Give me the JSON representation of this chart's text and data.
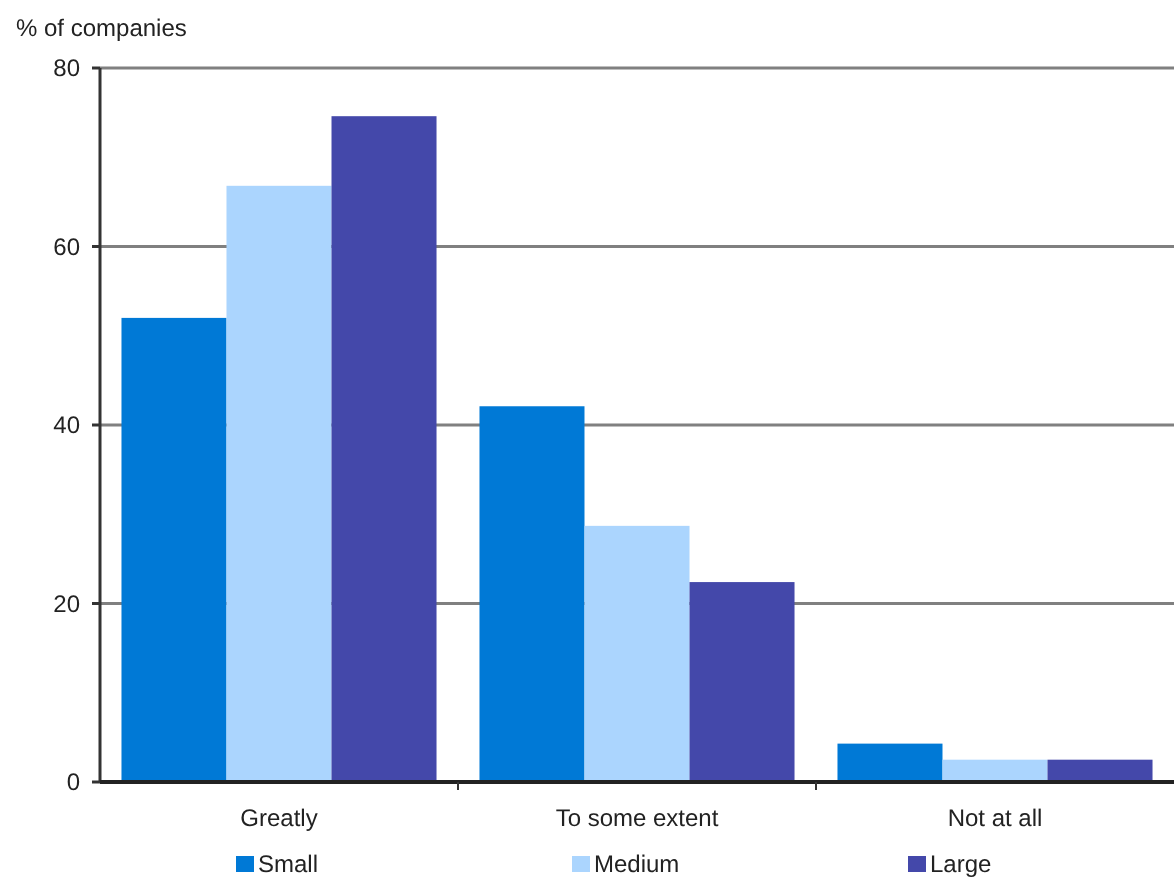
{
  "chart_data": {
    "type": "bar",
    "ylabel": "% of companies",
    "categories": [
      "Greatly",
      "To some extent",
      "Not at all"
    ],
    "series": [
      {
        "name": "Small",
        "color": "#0079d6",
        "values": [
          52,
          42.1,
          4.3
        ]
      },
      {
        "name": "Medium",
        "color": "#abd5fe",
        "values": [
          66.8,
          28.7,
          2.5
        ]
      },
      {
        "name": "Large",
        "color": "#4448aa",
        "values": [
          74.6,
          22.4,
          2.5
        ]
      }
    ],
    "ylim": [
      0,
      80
    ],
    "yticks": [
      0,
      20,
      40,
      60,
      80
    ],
    "grid": "y",
    "legend": "bottom"
  }
}
